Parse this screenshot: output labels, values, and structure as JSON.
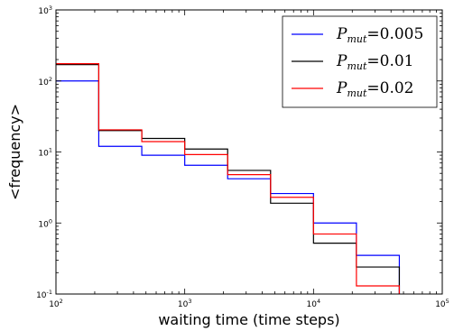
{
  "chart_data": {
    "type": "line",
    "step": true,
    "xscale": "log",
    "yscale": "log",
    "xlim": [
      100,
      100000
    ],
    "ylim": [
      0.1,
      1000
    ],
    "xlabel": "waiting time (time steps)",
    "ylabel": "<frequency>",
    "x_ticks": [
      {
        "base": "10",
        "exp": "2"
      },
      {
        "base": "10",
        "exp": "3"
      },
      {
        "base": "10",
        "exp": "4"
      },
      {
        "base": "10",
        "exp": "5"
      }
    ],
    "y_ticks": [
      {
        "base": "10",
        "exp": "-1"
      },
      {
        "base": "10",
        "exp": "0"
      },
      {
        "base": "10",
        "exp": "1"
      },
      {
        "base": "10",
        "exp": "2"
      },
      {
        "base": "10",
        "exp": "3"
      }
    ],
    "grid": false,
    "legend_position": "top-right",
    "bin_edges": [
      100,
      215,
      464,
      1000,
      2154,
      4642,
      10000,
      21544,
      46416
    ],
    "series": [
      {
        "name": "P_mut = 0.005",
        "label_main": "P",
        "label_sub": "mut",
        "label_value": "=0.005",
        "color": "#0000ff",
        "values": [
          100,
          12,
          9,
          6.5,
          4.2,
          2.6,
          1.0,
          0.35
        ]
      },
      {
        "name": "P_mut = 0.01",
        "label_main": "P",
        "label_sub": "mut",
        "label_value": "=0.01",
        "color": "#000000",
        "values": [
          170,
          20,
          15.5,
          11,
          5.5,
          1.9,
          0.52,
          0.24
        ]
      },
      {
        "name": "P_mut = 0.02",
        "label_main": "P",
        "label_sub": "mut",
        "label_value": "=0.02",
        "color": "#ff0000",
        "values": [
          175,
          20.5,
          14,
          9.2,
          4.8,
          2.3,
          0.7,
          0.13
        ]
      }
    ]
  }
}
